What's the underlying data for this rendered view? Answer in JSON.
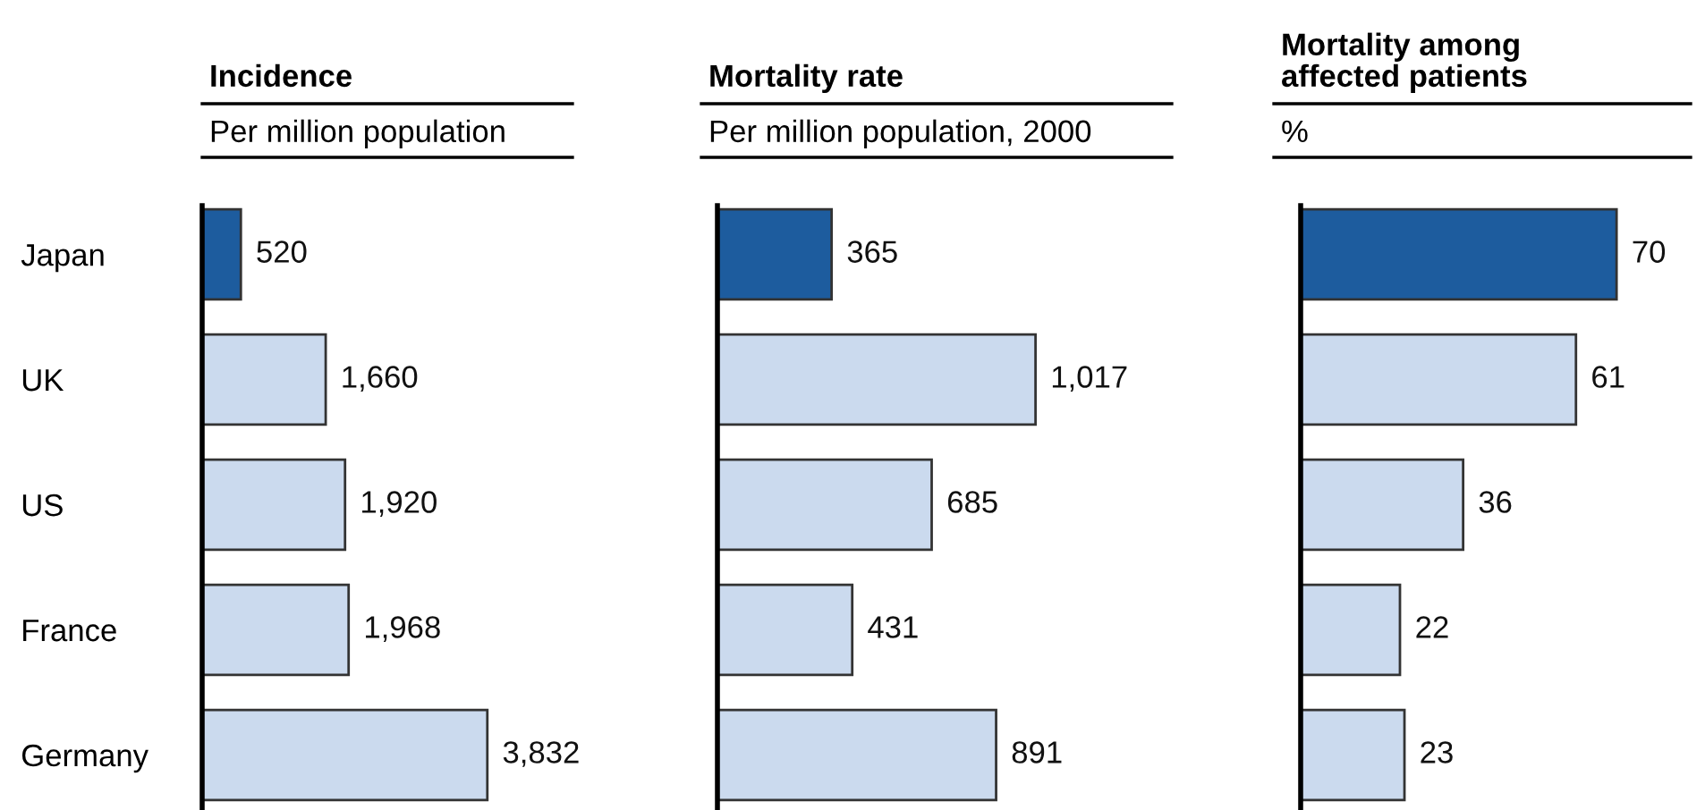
{
  "chart_data": [
    {
      "type": "bar",
      "orientation": "horizontal",
      "title": "Incidence",
      "subtitle": "Per million population",
      "categories": [
        "Japan",
        "UK",
        "US",
        "France",
        "Germany"
      ],
      "values": [
        520,
        1660,
        1920,
        1968,
        3832
      ],
      "colors": [
        "#1d5c9e",
        "#cbdaee",
        "#cbdaee",
        "#cbdaee",
        "#cbdaee"
      ],
      "value_labels": [
        "520",
        "1,660",
        "1,920",
        "1,968",
        "3,832"
      ],
      "tick_labels": "y",
      "grid": false,
      "legend": false
    },
    {
      "type": "bar",
      "orientation": "horizontal",
      "title": "Mortality rate",
      "subtitle": "Per million population, 2000",
      "categories": [
        null,
        null,
        null,
        null,
        null
      ],
      "values": [
        365,
        1017,
        685,
        431,
        891
      ],
      "colors": [
        "#1d5c9e",
        "#cbdaee",
        "#cbdaee",
        "#cbdaee",
        "#cbdaee"
      ],
      "value_labels": [
        "365",
        "1,017",
        "685",
        "431",
        "891"
      ],
      "tick_labels": false,
      "grid": false,
      "legend": false
    },
    {
      "type": "bar",
      "orientation": "horizontal",
      "title": "Mortality among\naffected patients",
      "subtitle": "%",
      "categories": [
        null,
        null,
        null,
        null,
        null
      ],
      "values": [
        70,
        61,
        36,
        22,
        23
      ],
      "colors": [
        "#1d5c9e",
        "#cbdaee",
        "#cbdaee",
        "#cbdaee",
        "#cbdaee"
      ],
      "data_labels": true,
      "tick_labels": false,
      "grid": false,
      "legend": false
    }
  ]
}
